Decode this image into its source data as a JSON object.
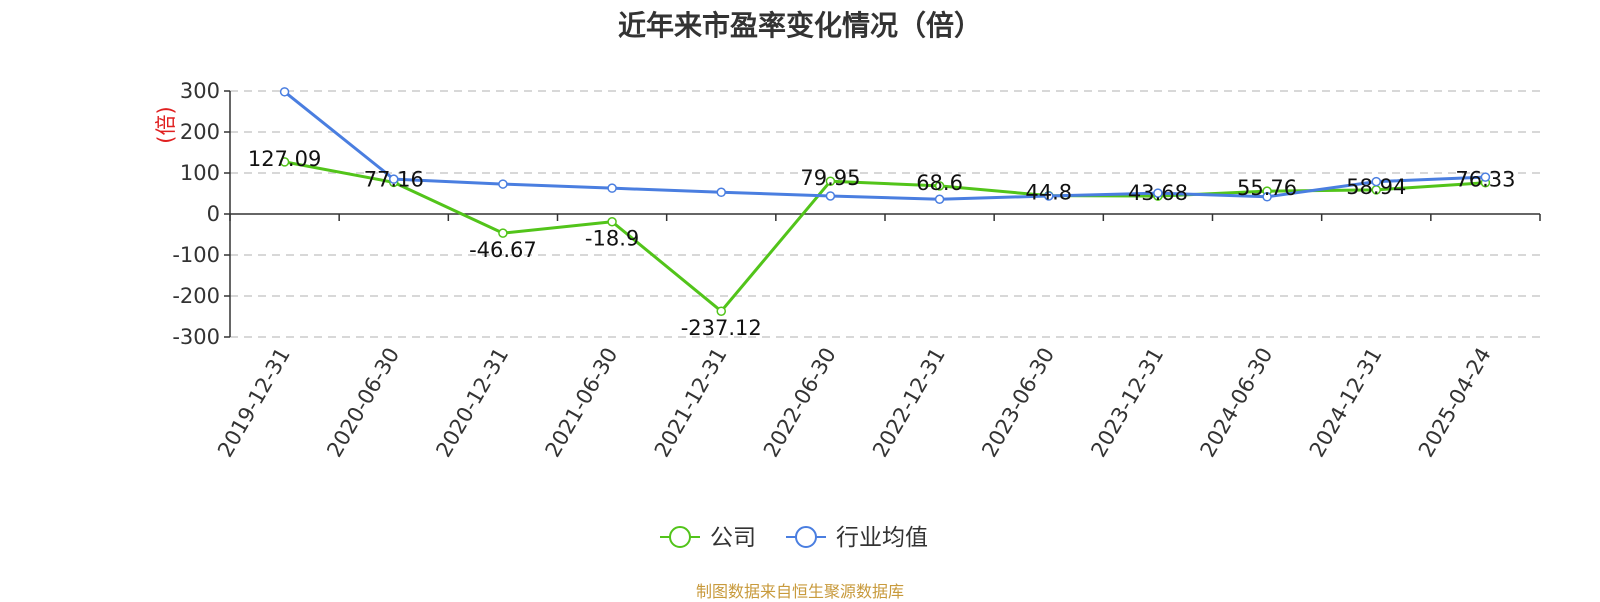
{
  "chart_data": {
    "type": "line",
    "title": "近年来市盈率变化情况（倍）",
    "ylabel": "(倍)",
    "ylim": [
      -300,
      300
    ],
    "yticks": [
      300,
      200,
      100,
      0,
      -100,
      -200,
      -300
    ],
    "categories": [
      "2019-12-31",
      "2020-06-30",
      "2020-12-31",
      "2021-06-30",
      "2021-12-31",
      "2022-06-30",
      "2022-12-31",
      "2023-06-30",
      "2023-12-31",
      "2024-06-30",
      "2024-12-31",
      "2025-04-24"
    ],
    "grid": true,
    "legend_position": "bottom",
    "series": [
      {
        "name": "公司",
        "color": "#52c41a",
        "values": [
          127.09,
          77.16,
          -46.67,
          -18.9,
          -237.12,
          79.95,
          68.6,
          44.8,
          43.68,
          55.76,
          58.94,
          76.33
        ],
        "labels": [
          "127.09",
          "77.16",
          "-46.67",
          "-18.9",
          "-237.12",
          "79.95",
          "68.6",
          "44.8",
          "43.68",
          "55.76",
          "58.94",
          "76.33"
        ]
      },
      {
        "name": "行业均值",
        "color": "#4a7ee0",
        "values": [
          298,
          85,
          73,
          63,
          53,
          44,
          36,
          44,
          51,
          42,
          79,
          90
        ]
      }
    ]
  },
  "source_note": "制图数据来自恒生聚源数据库",
  "colors": {
    "title": "#333333",
    "ylabel": "#e02020",
    "source": "#c89a3c",
    "grid": "#cccccc",
    "axis": "#333333"
  }
}
